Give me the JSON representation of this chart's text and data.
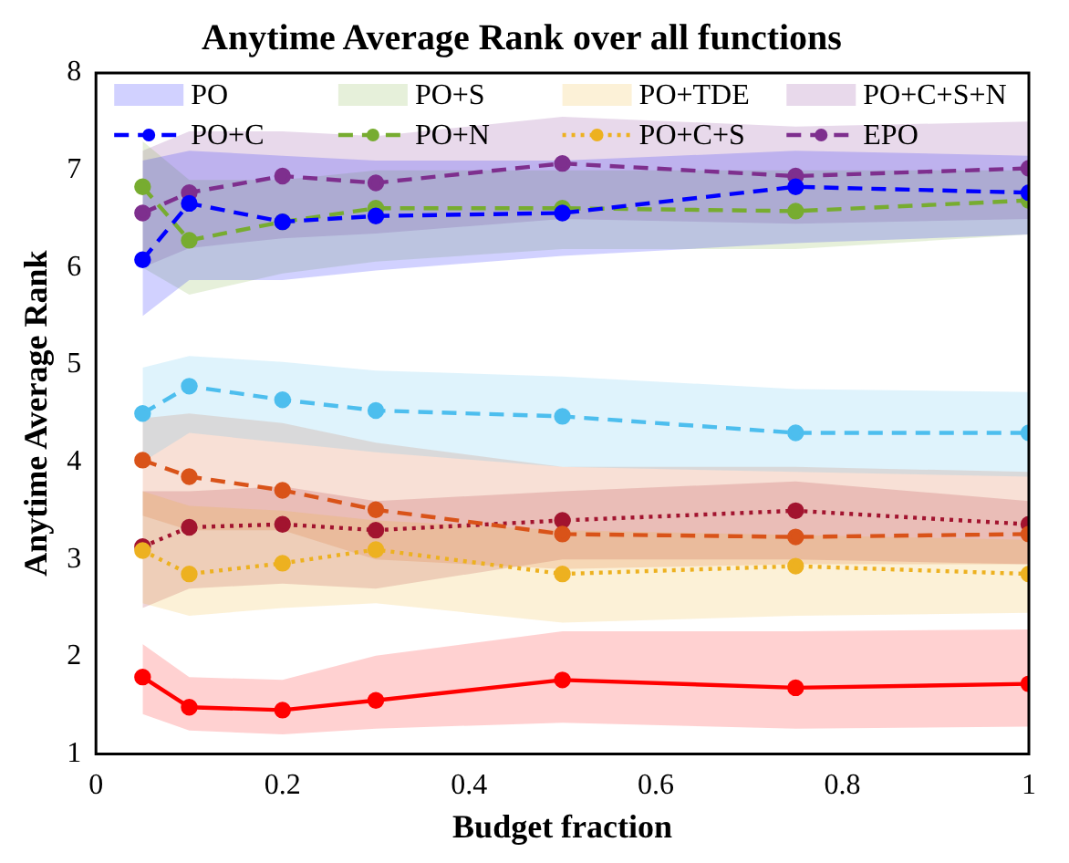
{
  "chart_data": {
    "type": "line",
    "title": "Anytime Average Rank over all functions",
    "xlabel": "Budget fraction",
    "ylabel": "Anytime Average Rank",
    "x": [
      0.05,
      0.1,
      0.2,
      0.3,
      0.5,
      0.75,
      1
    ],
    "xlim": [
      0,
      1
    ],
    "xticks": [
      0,
      0.2,
      0.4,
      0.6,
      0.8,
      1
    ],
    "ylim": [
      1,
      8
    ],
    "yticks": [
      1,
      2,
      3,
      4,
      5,
      6,
      7,
      8
    ],
    "grid": false,
    "legend": "top",
    "marker": "circle",
    "series": [
      {
        "name": "PO",
        "type": "area",
        "color": "#0000ff",
        "values": [
          null,
          null,
          null,
          null,
          null,
          null,
          null
        ],
        "lower": [
          5.5,
          5.87,
          5.87,
          5.97,
          6.12,
          6.25,
          6.34
        ],
        "upper": [
          7.1,
          7.2,
          7.15,
          7.1,
          7.1,
          7.2,
          7.15
        ]
      },
      {
        "name": "PO+S",
        "type": "area",
        "color": "#77ac30",
        "values": [
          null,
          null,
          null,
          null,
          null,
          null,
          null
        ],
        "lower": [
          6.0,
          5.72,
          5.94,
          6.06,
          6.19,
          6.19,
          6.34
        ],
        "upper": [
          7.3,
          6.9,
          6.9,
          7.0,
          7.0,
          7.0,
          7.0
        ]
      },
      {
        "name": "PO+TDE",
        "type": "area",
        "color": "#edb120",
        "values": [
          null,
          null,
          null,
          null,
          null,
          null,
          null
        ],
        "lower": [
          2.55,
          2.42,
          2.5,
          2.55,
          2.35,
          2.42,
          2.45
        ],
        "upper": [
          3.7,
          3.55,
          3.5,
          3.4,
          3.3,
          3.25,
          3.2
        ]
      },
      {
        "name": "PO+C+S+N",
        "type": "area",
        "color": "#7e2f8e",
        "values": [
          null,
          null,
          null,
          null,
          null,
          null,
          null
        ],
        "lower": [
          6.0,
          6.2,
          6.3,
          6.35,
          6.5,
          6.45,
          6.5
        ],
        "upper": [
          7.2,
          7.4,
          7.4,
          7.35,
          7.55,
          7.45,
          7.5
        ]
      },
      {
        "name": "PO+C",
        "color": "#0000ff",
        "line_style": "dashed",
        "values": [
          6.08,
          6.66,
          6.47,
          6.53,
          6.56,
          6.83,
          6.77
        ]
      },
      {
        "name": "PO+N",
        "color": "#77ac30",
        "line_style": "dashed",
        "values": [
          6.83,
          6.28,
          6.47,
          6.61,
          6.61,
          6.58,
          6.69
        ]
      },
      {
        "name": "PO+C+S",
        "color": "#edb120",
        "line_style": "dotted",
        "values": [
          3.09,
          2.85,
          2.96,
          3.1,
          2.85,
          2.93,
          2.85
        ]
      },
      {
        "name": "EPO",
        "color": "#7e2f8e",
        "line_style": "dashed",
        "values": [
          6.56,
          6.77,
          6.94,
          6.87,
          7.07,
          6.94,
          7.02
        ]
      },
      {
        "color": "#4dbeee",
        "line_style": "dashed",
        "values": [
          4.5,
          4.78,
          4.64,
          4.53,
          4.47,
          4.3,
          4.3
        ],
        "lower": [
          4.0,
          4.3,
          4.2,
          4.1,
          3.95,
          3.9,
          3.85
        ],
        "upper": [
          4.97,
          5.09,
          5.03,
          4.94,
          4.88,
          4.75,
          4.72
        ]
      },
      {
        "color": "#d95319",
        "line_style": "dashed",
        "values": [
          4.02,
          3.85,
          3.71,
          3.51,
          3.26,
          3.23,
          3.26
        ],
        "lower": [
          3.45,
          3.3,
          3.3,
          3.0,
          2.9,
          2.95,
          2.95
        ],
        "upper": [
          4.45,
          4.5,
          4.4,
          4.2,
          3.95,
          3.95,
          3.9
        ]
      },
      {
        "color": "#a2142f",
        "line_style": "dotted",
        "values": [
          3.13,
          3.33,
          3.36,
          3.3,
          3.4,
          3.5,
          3.36
        ],
        "lower": [
          2.5,
          2.7,
          2.75,
          2.7,
          3.0,
          3.0,
          2.95
        ],
        "upper": [
          3.7,
          3.7,
          3.75,
          3.6,
          3.7,
          3.8,
          3.6
        ]
      },
      {
        "color": "#ff0000",
        "line_style": "solid",
        "values": [
          1.79,
          1.48,
          1.45,
          1.55,
          1.76,
          1.68,
          1.72
        ],
        "lower": [
          1.41,
          1.24,
          1.2,
          1.26,
          1.32,
          1.26,
          1.28
        ],
        "upper": [
          2.13,
          1.79,
          1.76,
          2.01,
          2.26,
          2.26,
          2.28
        ]
      }
    ]
  }
}
